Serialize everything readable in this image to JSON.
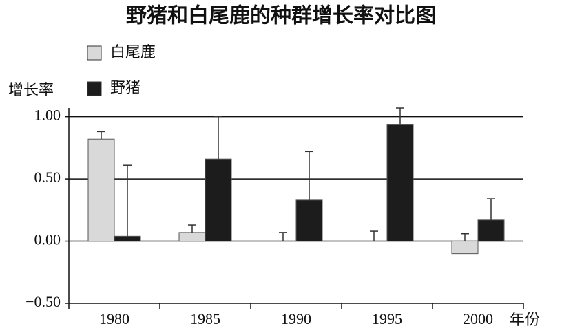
{
  "chart_data": {
    "type": "bar",
    "title": "野猪和白尾鹿的种群增长率对比图",
    "y_label": "增长率",
    "x_label": "年份",
    "categories": [
      "1980",
      "1985",
      "1990",
      "1995",
      "2000"
    ],
    "series": [
      {
        "name": "白尾鹿",
        "color": "#d9d9d9",
        "values": [
          0.82,
          0.07,
          0.0,
          0.0,
          -0.1
        ],
        "errors": [
          0.06,
          0.06,
          0.07,
          0.08,
          0.16
        ]
      },
      {
        "name": "野猪",
        "color": "#1c1c1c",
        "values": [
          0.04,
          0.66,
          0.33,
          0.94,
          0.17
        ],
        "errors": [
          0.57,
          0.34,
          0.39,
          0.13,
          0.17
        ]
      }
    ],
    "ylim": [
      -0.5,
      1.07
    ],
    "yticks": [
      {
        "value": -0.5,
        "label": "−0.50"
      },
      {
        "value": 0,
        "label": "0.00"
      },
      {
        "value": 0.5,
        "label": "0.50"
      },
      {
        "value": 1,
        "label": "1.00"
      }
    ],
    "grid": true
  }
}
